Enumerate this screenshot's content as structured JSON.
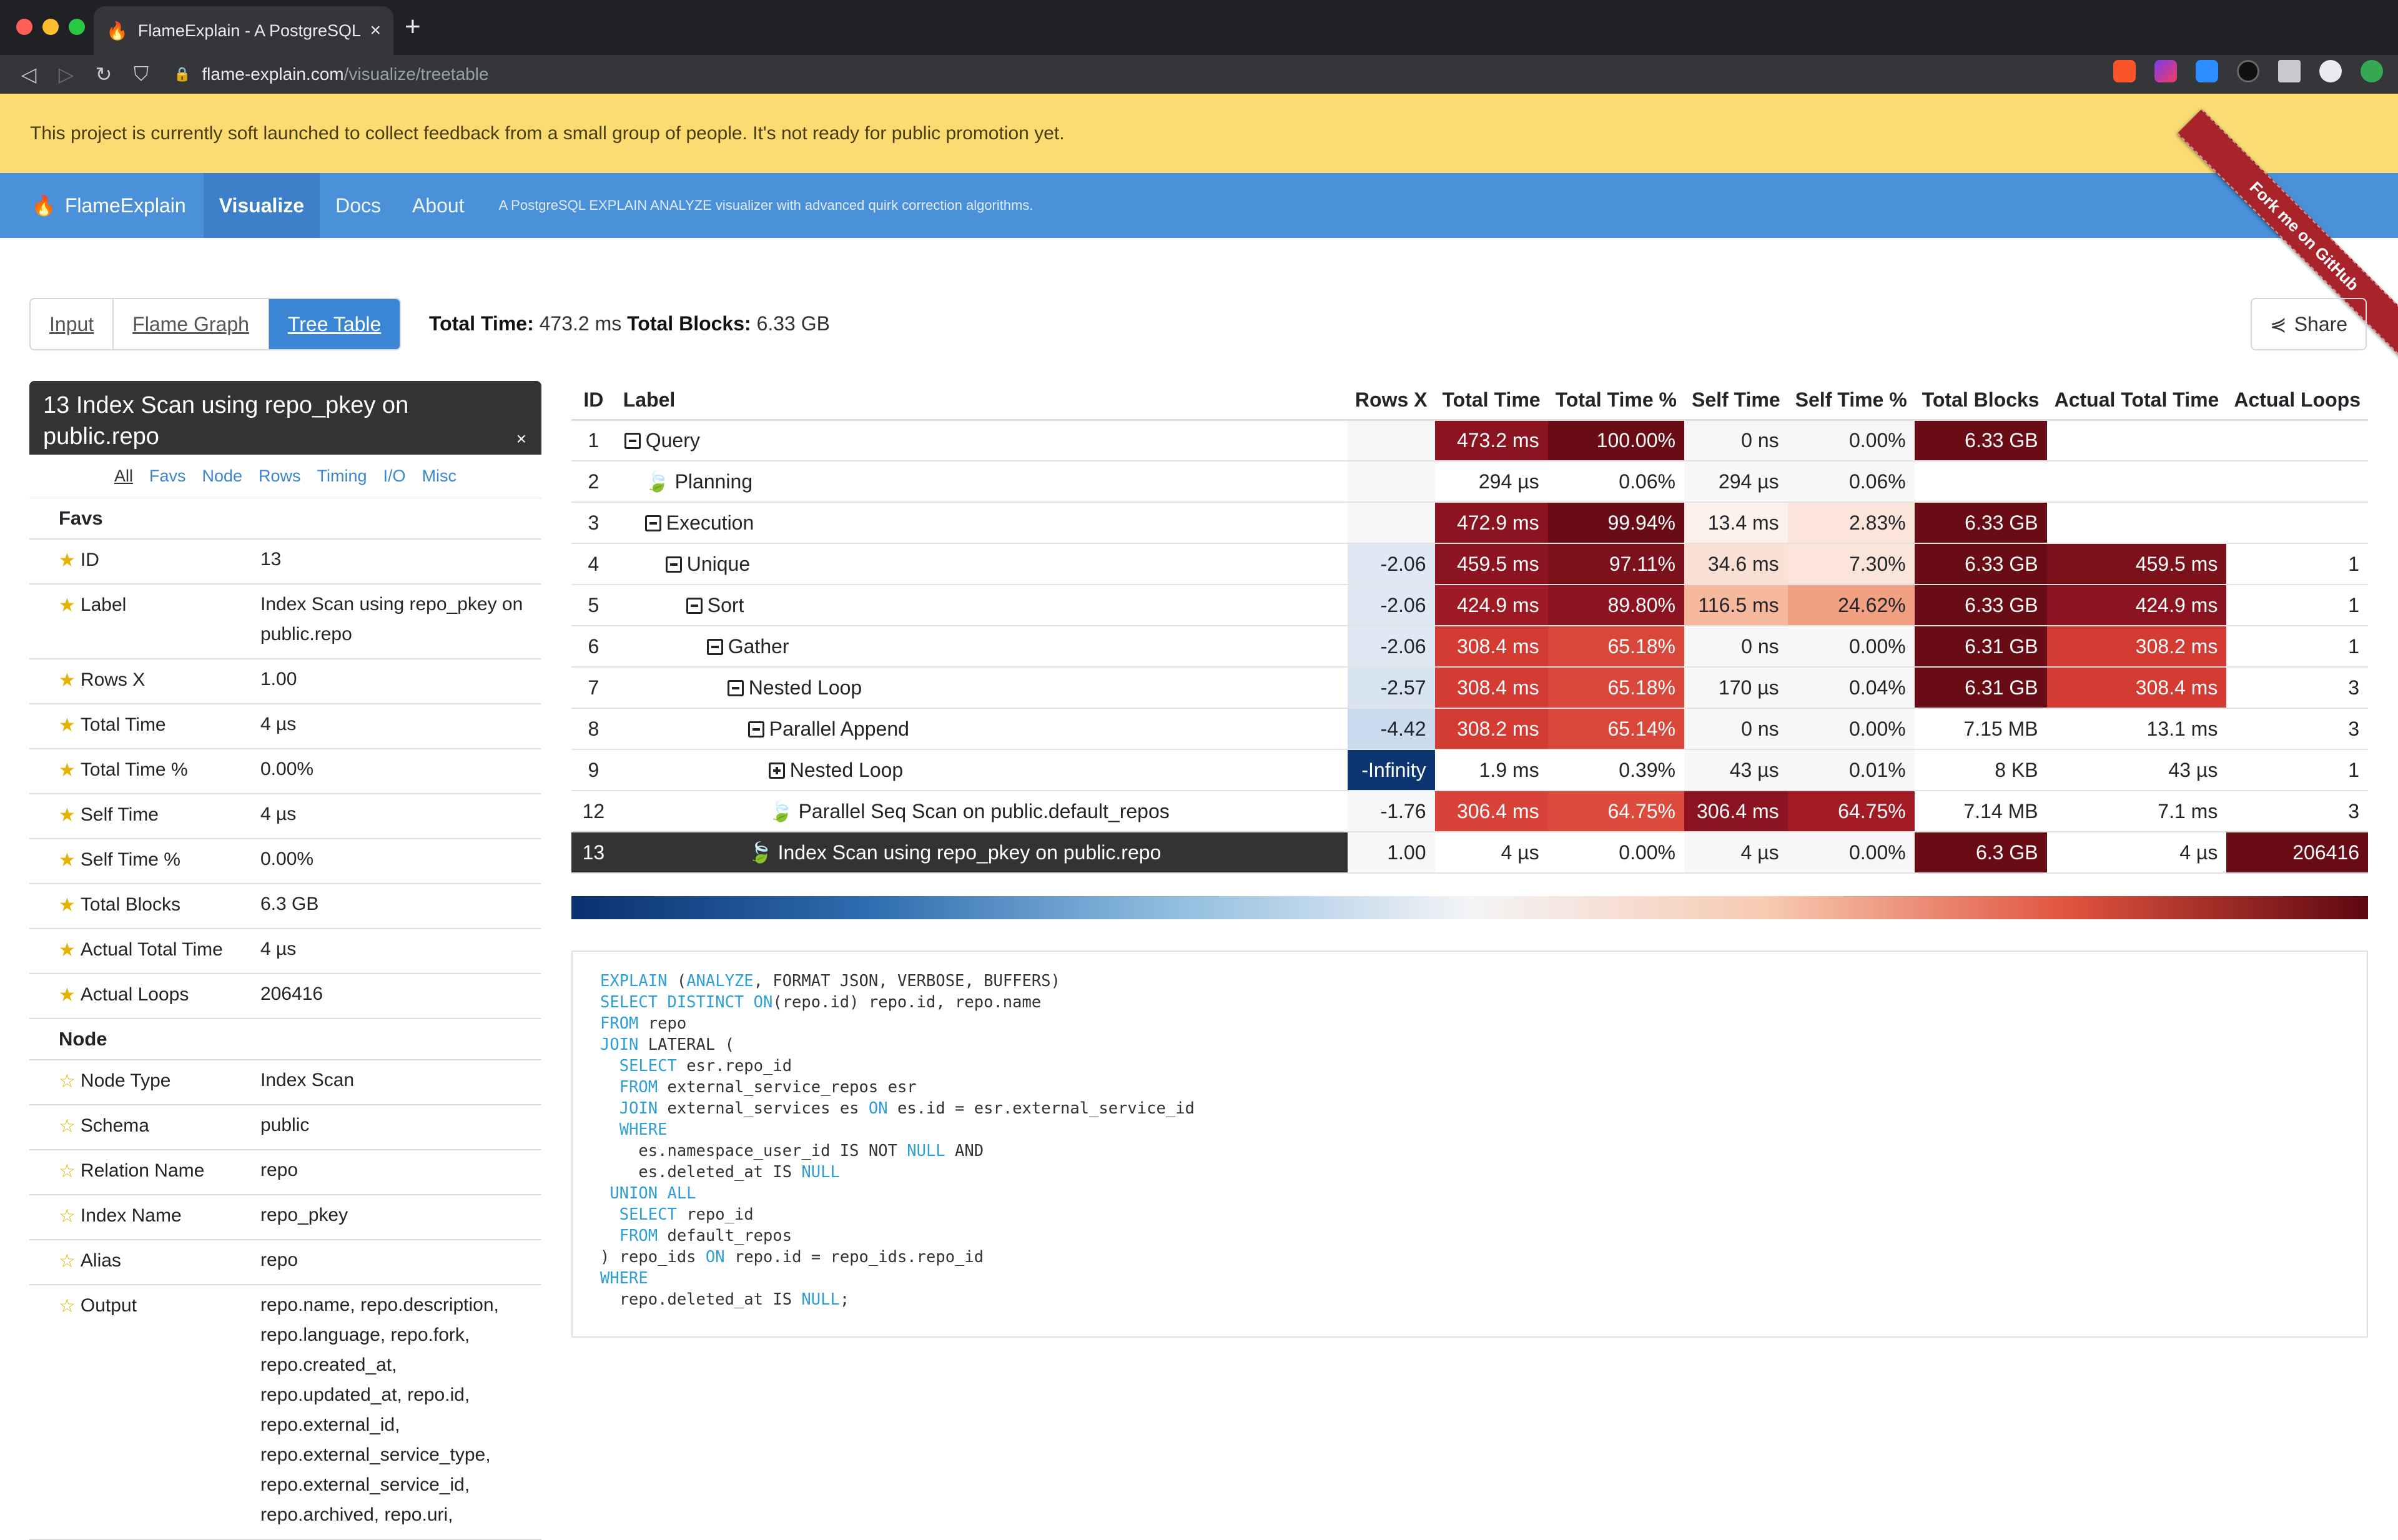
{
  "browser": {
    "tab_title": "FlameExplain - A PostgreSQL EX",
    "url_host": "flame-explain.com",
    "url_path": "/visualize/treetable"
  },
  "banner": {
    "text": "This project is currently soft launched to collect feedback from a small group of people. It's not ready for public promotion yet."
  },
  "navbar": {
    "brand": "FlameExplain",
    "links": [
      "Visualize",
      "Docs",
      "About"
    ],
    "tagline": "A PostgreSQL EXPLAIN ANALYZE visualizer with advanced quirk correction algorithms.",
    "ribbon": "Fork me on GitHub"
  },
  "view_tabs": [
    "Input",
    "Flame Graph",
    "Tree Table"
  ],
  "totals": {
    "time_label": "Total Time:",
    "time_value": "473.2 ms",
    "blocks_label": "Total Blocks:",
    "blocks_value": "6.33 GB"
  },
  "share_label": "Share",
  "detail": {
    "title": "13 Index Scan using repo_pkey on public.repo",
    "close": "×",
    "tabs": [
      "All",
      "Favs",
      "Node",
      "Rows",
      "Timing",
      "I/O",
      "Misc"
    ],
    "sections": [
      {
        "name": "Favs",
        "rows": [
          {
            "k": "ID",
            "v": "13"
          },
          {
            "k": "Label",
            "v": "Index Scan using repo_pkey on public.repo"
          },
          {
            "k": "Rows X",
            "v": "1.00"
          },
          {
            "k": "Total Time",
            "v": "4 µs"
          },
          {
            "k": "Total Time %",
            "v": "0.00%"
          },
          {
            "k": "Self Time",
            "v": "4 µs"
          },
          {
            "k": "Self Time %",
            "v": "0.00%"
          },
          {
            "k": "Total Blocks",
            "v": "6.3 GB"
          },
          {
            "k": "Actual Total Time",
            "v": "4 µs"
          },
          {
            "k": "Actual Loops",
            "v": "206416"
          }
        ]
      },
      {
        "name": "Node",
        "rows": [
          {
            "k": "Node Type",
            "v": "Index Scan"
          },
          {
            "k": "Schema",
            "v": "public"
          },
          {
            "k": "Relation Name",
            "v": "repo"
          },
          {
            "k": "Index Name",
            "v": "repo_pkey"
          },
          {
            "k": "Alias",
            "v": "repo"
          },
          {
            "k": "Output",
            "v": "repo.name, repo.description, repo.language, repo.fork, repo.created_at, repo.updated_at, repo.id, repo.external_id, repo.external_service_type, repo.external_service_id, repo.archived, repo.uri,"
          }
        ]
      }
    ]
  },
  "table": {
    "headers": [
      "ID",
      "Label",
      "Rows X",
      "Total Time",
      "Total Time %",
      "Self Time",
      "Self Time %",
      "Total Blocks",
      "Actual Total Time",
      "Actual Loops"
    ],
    "rows": [
      {
        "id": "1",
        "indent": 0,
        "icon": "minus",
        "label": "Query",
        "rows_x": "",
        "total_time": "473.2 ms",
        "total_pct": "100.00%",
        "self_time": "0 ns",
        "self_pct": "0.00%",
        "blocks": "6.33 GB",
        "actual_time": "",
        "loops": ""
      },
      {
        "id": "2",
        "indent": 1,
        "icon": "leaf",
        "label": "Planning",
        "rows_x": "",
        "total_time": "294 µs",
        "total_pct": "0.06%",
        "self_time": "294 µs",
        "self_pct": "0.06%",
        "blocks": "",
        "actual_time": "",
        "loops": ""
      },
      {
        "id": "3",
        "indent": 1,
        "icon": "minus",
        "label": "Execution",
        "rows_x": "",
        "total_time": "472.9 ms",
        "total_pct": "99.94%",
        "self_time": "13.4 ms",
        "self_pct": "2.83%",
        "blocks": "6.33 GB",
        "actual_time": "",
        "loops": ""
      },
      {
        "id": "4",
        "indent": 2,
        "icon": "minus",
        "label": "Unique",
        "rows_x": "-2.06",
        "total_time": "459.5 ms",
        "total_pct": "97.11%",
        "self_time": "34.6 ms",
        "self_pct": "7.30%",
        "blocks": "6.33 GB",
        "actual_time": "459.5 ms",
        "loops": "1"
      },
      {
        "id": "5",
        "indent": 3,
        "icon": "minus",
        "label": "Sort",
        "rows_x": "-2.06",
        "total_time": "424.9 ms",
        "total_pct": "89.80%",
        "self_time": "116.5 ms",
        "self_pct": "24.62%",
        "blocks": "6.33 GB",
        "actual_time": "424.9 ms",
        "loops": "1"
      },
      {
        "id": "6",
        "indent": 4,
        "icon": "minus",
        "label": "Gather",
        "rows_x": "-2.06",
        "total_time": "308.4 ms",
        "total_pct": "65.18%",
        "self_time": "0 ns",
        "self_pct": "0.00%",
        "blocks": "6.31 GB",
        "actual_time": "308.2 ms",
        "loops": "1"
      },
      {
        "id": "7",
        "indent": 5,
        "icon": "minus",
        "label": "Nested Loop",
        "rows_x": "-2.57",
        "total_time": "308.4 ms",
        "total_pct": "65.18%",
        "self_time": "170 µs",
        "self_pct": "0.04%",
        "blocks": "6.31 GB",
        "actual_time": "308.4 ms",
        "loops": "3"
      },
      {
        "id": "8",
        "indent": 6,
        "icon": "minus",
        "label": "Parallel Append",
        "rows_x": "-4.42",
        "total_time": "308.2 ms",
        "total_pct": "65.14%",
        "self_time": "0 ns",
        "self_pct": "0.00%",
        "blocks": "7.15 MB",
        "actual_time": "13.1 ms",
        "loops": "3"
      },
      {
        "id": "9",
        "indent": 7,
        "icon": "plus",
        "label": "Nested Loop",
        "rows_x": "-Infinity",
        "total_time": "1.9 ms",
        "total_pct": "0.39%",
        "self_time": "43 µs",
        "self_pct": "0.01%",
        "blocks": "8 KB",
        "actual_time": "43 µs",
        "loops": "1"
      },
      {
        "id": "12",
        "indent": 7,
        "icon": "leaf",
        "label": "Parallel Seq Scan on public.default_repos",
        "rows_x": "-1.76",
        "total_time": "306.4 ms",
        "total_pct": "64.75%",
        "self_time": "306.4 ms",
        "self_pct": "64.75%",
        "blocks": "7.14 MB",
        "actual_time": "7.1 ms",
        "loops": "3"
      },
      {
        "id": "13",
        "indent": 6,
        "icon": "leaf",
        "label": "Index Scan using repo_pkey on public.repo",
        "rows_x": "1.00",
        "total_time": "4 µs",
        "total_pct": "0.00%",
        "self_time": "4 µs",
        "self_pct": "0.00%",
        "blocks": "6.3 GB",
        "actual_time": "4 µs",
        "loops": "206416",
        "selected": true
      }
    ],
    "cell_colors": {
      "1": {
        "total_time": "#8b1420",
        "total_pct": "#6a0c16",
        "blocks": "#6a0c16"
      },
      "3": {
        "total_time": "#8b1420",
        "total_pct": "#6a0c16",
        "self_time": "#fdf1ec",
        "self_pct": "#fbe4da",
        "blocks": "#6a0c16"
      },
      "4": {
        "rows_x": "#dfe9f4",
        "total_time": "#8b1420",
        "total_pct": "#7a111b",
        "self_time": "#fbe1d5",
        "self_pct": "#fbe4da",
        "blocks": "#6a0c16",
        "actual_time": "#7a111b"
      },
      "5": {
        "rows_x": "#dfe9f4",
        "total_time": "#9e1a24",
        "total_pct": "#8b1420",
        "self_time": "#f7b99e",
        "self_pct": "#f1a182",
        "blocks": "#6a0c16",
        "actual_time": "#8b1420"
      },
      "6": {
        "rows_x": "#dfe9f4",
        "total_time": "#d43c33",
        "total_pct": "#d9473a",
        "blocks": "#6a0c16",
        "actual_time": "#d43c33"
      },
      "7": {
        "rows_x": "#d8e4f1",
        "total_time": "#d43c33",
        "total_pct": "#d9473a",
        "blocks": "#6a0c16",
        "actual_time": "#d43c33"
      },
      "8": {
        "rows_x": "#c9dbed",
        "total_time": "#d43c33",
        "total_pct": "#d9473a"
      },
      "9": {
        "rows_x": "#0d3572"
      },
      "12": {
        "total_time": "#d84238",
        "total_pct": "#dc4b3c",
        "self_time": "#8b1420",
        "self_pct": "#a31c25"
      },
      "13": {
        "blocks": "#6a0c16",
        "loops": "#6a0c16"
      }
    }
  },
  "sql": [
    [
      [
        "kw",
        "EXPLAIN"
      ],
      [
        "t",
        " ("
      ],
      [
        "kw",
        "ANALYZE"
      ],
      [
        "t",
        ", FORMAT JSON, VERBOSE, BUFFERS)"
      ]
    ],
    [
      [
        "kw",
        "SELECT DISTINCT ON"
      ],
      [
        "t",
        "(repo.id) repo.id, repo.name"
      ]
    ],
    [
      [
        "kw",
        "FROM"
      ],
      [
        "t",
        " repo"
      ]
    ],
    [
      [
        "kw",
        "JOIN"
      ],
      [
        "t",
        " LATERAL ("
      ]
    ],
    [
      [
        "t",
        "  "
      ],
      [
        "kw",
        "SELECT"
      ],
      [
        "t",
        " esr.repo_id"
      ]
    ],
    [
      [
        "t",
        "  "
      ],
      [
        "kw",
        "FROM"
      ],
      [
        "t",
        " external_service_repos esr"
      ]
    ],
    [
      [
        "t",
        "  "
      ],
      [
        "kw",
        "JOIN"
      ],
      [
        "t",
        " external_services es "
      ],
      [
        "kw",
        "ON"
      ],
      [
        "t",
        " es.id = esr.external_service_id"
      ]
    ],
    [
      [
        "t",
        "  "
      ],
      [
        "kw",
        "WHERE"
      ]
    ],
    [
      [
        "t",
        "    es.namespace_user_id IS NOT "
      ],
      [
        "kw",
        "NULL"
      ],
      [
        "t",
        " AND"
      ]
    ],
    [
      [
        "t",
        "    es.deleted_at IS "
      ],
      [
        "kw",
        "NULL"
      ]
    ],
    [
      [
        "t",
        " "
      ],
      [
        "kw",
        "UNION ALL"
      ]
    ],
    [
      [
        "t",
        "  "
      ],
      [
        "kw",
        "SELECT"
      ],
      [
        "t",
        " repo_id"
      ]
    ],
    [
      [
        "t",
        "  "
      ],
      [
        "kw",
        "FROM"
      ],
      [
        "t",
        " default_repos"
      ]
    ],
    [
      [
        "t",
        ") repo_ids "
      ],
      [
        "kw",
        "ON"
      ],
      [
        "t",
        " repo.id = repo_ids.repo_id"
      ]
    ],
    [
      [
        "kw",
        "WHERE"
      ]
    ],
    [
      [
        "t",
        "  repo.deleted_at IS "
      ],
      [
        "kw",
        "NULL"
      ],
      [
        "t",
        ";"
      ]
    ]
  ]
}
